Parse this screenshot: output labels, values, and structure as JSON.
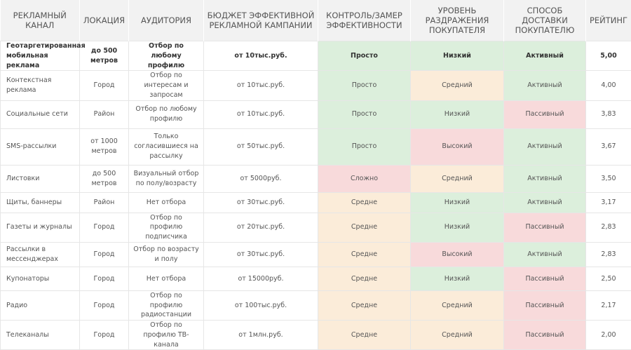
{
  "table": {
    "header": [
      "РЕКЛАМНЫЙ КАНАЛ",
      "ЛОКАЦИЯ",
      "АУДИТОРИЯ",
      "БЮДЖЕТ ЭФФЕКТИВНОЙ РЕКЛАМНОЙ КАМПАНИИ",
      "КОНТРОЛЬ/ЗАМЕР ЭФФЕКТИВНОСТИ",
      "УРОВЕНЬ РАЗДРАЖЕНИЯ ПОКУПАТЕЛЯ",
      "СПОСОБ ДОСТАВКИ ПОКУПАТЕЛЮ",
      "РЕЙТИНГ"
    ],
    "rows": [
      [
        "Геотаргетированная мобильная реклама",
        "до 500 метров",
        "Отбор по любому профилю",
        "от 10тыс.руб.",
        "Просто",
        "Низкий",
        "Активный",
        "5,00"
      ],
      [
        "Контекстная реклама",
        "Город",
        "Отбор по интересам и запросам",
        "от 10тыс.руб.",
        "Просто",
        "Средний",
        "Активный",
        "4,00"
      ],
      [
        "Социальные сети",
        "Район",
        "Отбор по любому профилю",
        "от 10тыс.руб.",
        "Просто",
        "Низкий",
        "Пассивный",
        "3,83"
      ],
      [
        "SMS-рассылки",
        "от 1000 метров",
        "Только согласившиеся на рассылку",
        "от 50тыс.руб.",
        "Просто",
        "Высокий",
        "Активный",
        "3,67"
      ],
      [
        "Листовки",
        "до 500 метров",
        "Визуальный отбор по полу/возрасту",
        "от 5000руб.",
        "Сложно",
        "Средний",
        "Активный",
        "3,50"
      ],
      [
        "Щиты, баннеры",
        "Район",
        "Нет отбора",
        "от 30тыс.руб.",
        "Средне",
        "Низкий",
        "Активный",
        "3,17"
      ],
      [
        "Газеты и журналы",
        "Город",
        "Отбор по профилю подписчика",
        "от 20тыс.руб.",
        "Средне",
        "Низкий",
        "Пассивный",
        "2,83"
      ],
      [
        "Рассылки в мессенджерах",
        "Город",
        "Отбор по возрасту и полу",
        "от 30тыс.руб.",
        "Средне",
        "Высокий",
        "Активный",
        "2,83"
      ],
      [
        "Купонаторы",
        "Город",
        "Нет отбора",
        "от 15000руб.",
        "Средне",
        "Низкий",
        "Пассивный",
        "2,50"
      ],
      [
        "Радио",
        "Город",
        "Отбор по профилю радиостанции",
        "от 100тыс.руб.",
        "Средне",
        "Средний",
        "Пассивный",
        "2,17"
      ],
      [
        "Телеканалы",
        "Город",
        "Отбор по профилю ТВ-канала",
        "от 1млн.руб.",
        "Средне",
        "Средний",
        "Пассивный",
        "2,00"
      ]
    ],
    "cell_colors": [
      [
        "#dcefdc",
        "#dcefdc",
        "#dcefdc"
      ],
      [
        "#dcefdc",
        "#fbecd9",
        "#dcefdc"
      ],
      [
        "#dcefdc",
        "#dcefdc",
        "#f8dadb"
      ],
      [
        "#dcefdc",
        "#f8dadb",
        "#dcefdc"
      ],
      [
        "#f8dadb",
        "#fbecd9",
        "#dcefdc"
      ],
      [
        "#fbecd9",
        "#dcefdc",
        "#dcefdc"
      ],
      [
        "#fbecd9",
        "#dcefdc",
        "#f8dadb"
      ],
      [
        "#fbecd9",
        "#f8dadb",
        "#dcefdc"
      ],
      [
        "#fbecd9",
        "#dcefdc",
        "#f8dadb"
      ],
      [
        "#fbecd9",
        "#fbecd9",
        "#f8dadb"
      ],
      [
        "#fbecd9",
        "#fbecd9",
        "#f8dadb"
      ]
    ]
  }
}
